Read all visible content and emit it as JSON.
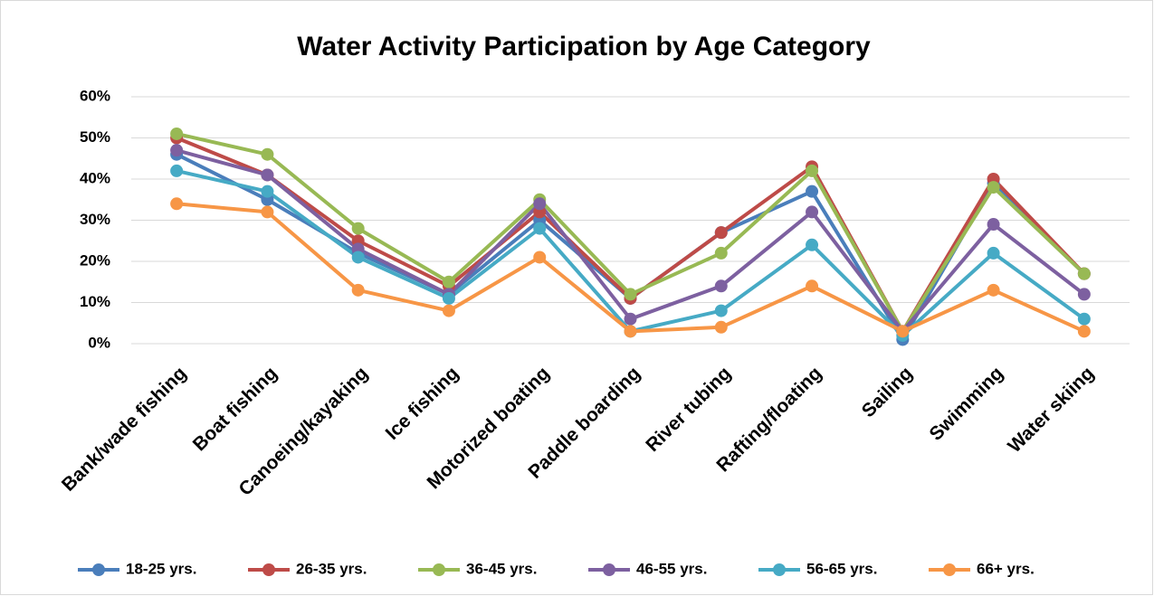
{
  "chart_data": {
    "type": "line",
    "title": "Water Activity Participation by Age Category",
    "categories": [
      "Bank/wade fishing",
      "Boat fishing",
      "Canoeing/kayaking",
      "Ice fishing",
      "Motorized boating",
      "Paddle boarding",
      "River tubing",
      "Rafting/floating",
      "Sailing",
      "Swimming",
      "Water skiing"
    ],
    "series": [
      {
        "name": "18-25 yrs.",
        "color": "#4a7ebb",
        "values": [
          46,
          35,
          22,
          12,
          30,
          11,
          27,
          37,
          1,
          39,
          17
        ]
      },
      {
        "name": "26-35 yrs.",
        "color": "#be4b48",
        "values": [
          50,
          41,
          25,
          14,
          32,
          11,
          27,
          43,
          3,
          40,
          17
        ]
      },
      {
        "name": "36-45 yrs.",
        "color": "#98b954",
        "values": [
          51,
          46,
          28,
          15,
          35,
          12,
          22,
          42,
          3,
          38,
          17
        ]
      },
      {
        "name": "46-55 yrs.",
        "color": "#7d60a0",
        "values": [
          47,
          41,
          23,
          12,
          34,
          6,
          14,
          32,
          3,
          29,
          12
        ]
      },
      {
        "name": "56-65 yrs.",
        "color": "#46aac5",
        "values": [
          42,
          37,
          21,
          11,
          28,
          3,
          8,
          24,
          2,
          22,
          6
        ]
      },
      {
        "name": "66+ yrs.",
        "color": "#f79646",
        "values": [
          34,
          32,
          13,
          8,
          21,
          3,
          4,
          14,
          3,
          13,
          3
        ]
      }
    ],
    "ylim": [
      0,
      60
    ],
    "yticks": [
      {
        "value": 0,
        "label": "0%"
      },
      {
        "value": 10,
        "label": "10%"
      },
      {
        "value": 20,
        "label": "20%"
      },
      {
        "value": 30,
        "label": "30%"
      },
      {
        "value": 40,
        "label": "40%"
      },
      {
        "value": 50,
        "label": "50%"
      },
      {
        "value": 60,
        "label": "60%"
      }
    ],
    "grid": true,
    "legend": "bottom"
  }
}
